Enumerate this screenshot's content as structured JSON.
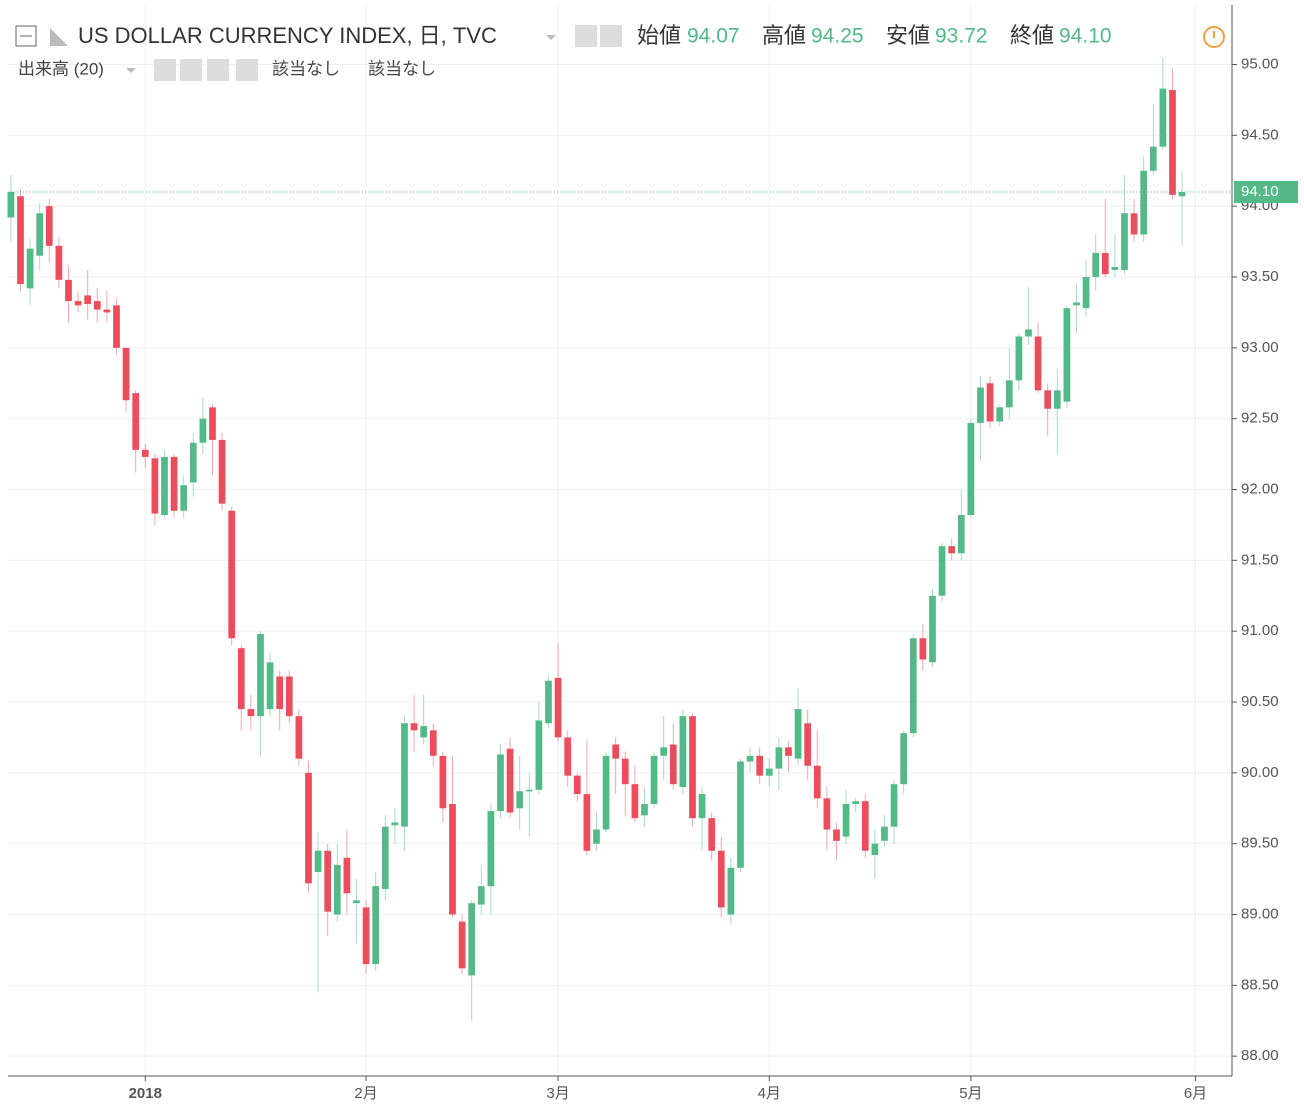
{
  "header": {
    "title": "US DOLLAR CURRENCY INDEX, 日, TVC",
    "readout": [
      {
        "name": "始値",
        "value": "94.07"
      },
      {
        "name": "高値",
        "value": "94.25"
      },
      {
        "name": "安値",
        "value": "93.72"
      },
      {
        "name": "終値",
        "value": "94.10"
      }
    ],
    "volume": "出来高 (20)",
    "na": [
      "該当なし",
      "該当なし"
    ]
  },
  "chart_data": {
    "type": "candlestick",
    "open": [
      93.92,
      94.07,
      93.42,
      93.65,
      94.0,
      93.72,
      93.48,
      93.33,
      93.37,
      93.33,
      93.27,
      93.3,
      93.0,
      92.68,
      92.28,
      92.22,
      91.82,
      92.23,
      91.85,
      92.05,
      92.33,
      92.58,
      92.35,
      91.85,
      90.88,
      90.45,
      90.4,
      90.45,
      90.68,
      90.68,
      90.4,
      90.0,
      89.3,
      89.45,
      89.0,
      89.4,
      89.08,
      89.05,
      88.65,
      89.18,
      89.63,
      89.62,
      90.35,
      90.25,
      90.3,
      90.12,
      89.78,
      88.95,
      88.57,
      89.07,
      89.2,
      89.73,
      90.17,
      89.75,
      89.88,
      89.88,
      90.35,
      90.67,
      90.25,
      89.98,
      89.85,
      89.5,
      89.6,
      90.2,
      90.1,
      89.92,
      89.7,
      89.78,
      90.12,
      90.2,
      89.9,
      90.4,
      89.68,
      89.68,
      89.45,
      89.0,
      89.33,
      90.08,
      90.12,
      89.98,
      90.03,
      90.18,
      90.1,
      90.35,
      90.05,
      89.82,
      89.6,
      89.55,
      89.78,
      89.8,
      89.42,
      89.52,
      89.62,
      89.92,
      90.28,
      90.95,
      90.78,
      91.25,
      91.6,
      91.55,
      91.82,
      92.47,
      92.75,
      92.48,
      92.58,
      92.77,
      93.08,
      93.08,
      92.7,
      92.57,
      92.62,
      93.3,
      93.28,
      93.5,
      93.67,
      93.55,
      93.55,
      93.95,
      93.8,
      94.25,
      94.42,
      94.82,
      94.07
    ],
    "high": [
      94.22,
      94.12,
      93.78,
      94.02,
      94.05,
      93.78,
      93.58,
      93.4,
      93.55,
      93.42,
      93.4,
      93.35,
      93.0,
      92.7,
      92.32,
      92.25,
      92.28,
      92.25,
      92.1,
      92.4,
      92.65,
      92.6,
      92.4,
      91.88,
      90.9,
      90.55,
      91.0,
      90.85,
      90.72,
      90.72,
      90.45,
      90.08,
      89.58,
      89.5,
      89.5,
      89.6,
      89.25,
      89.1,
      89.3,
      89.7,
      89.75,
      90.4,
      90.55,
      90.55,
      90.35,
      90.15,
      90.12,
      89.0,
      89.1,
      89.35,
      89.78,
      90.2,
      90.25,
      90.12,
      90.0,
      90.5,
      90.68,
      90.92,
      90.3,
      90.0,
      90.23,
      89.73,
      90.15,
      90.25,
      90.15,
      90.05,
      89.9,
      90.15,
      90.4,
      90.35,
      90.45,
      90.42,
      89.9,
      89.72,
      89.55,
      89.4,
      90.1,
      90.18,
      90.18,
      90.1,
      90.25,
      90.22,
      90.6,
      90.45,
      90.3,
      89.9,
      89.65,
      89.88,
      89.82,
      89.85,
      89.6,
      89.7,
      89.95,
      90.3,
      90.98,
      91.05,
      91.3,
      91.62,
      91.65,
      92.0,
      92.5,
      92.8,
      92.8,
      92.6,
      93.0,
      93.1,
      93.43,
      93.18,
      92.75,
      92.85,
      93.3,
      93.45,
      93.62,
      93.8,
      94.05,
      93.8,
      94.22,
      94.05,
      94.35,
      94.72,
      95.05,
      94.97,
      94.25
    ],
    "low": [
      93.75,
      93.4,
      93.3,
      93.55,
      93.6,
      93.42,
      93.18,
      93.25,
      93.2,
      93.18,
      93.18,
      92.95,
      92.55,
      92.12,
      92.15,
      91.75,
      91.8,
      91.8,
      91.8,
      91.95,
      92.25,
      92.1,
      91.85,
      90.9,
      90.3,
      90.3,
      90.12,
      90.4,
      90.3,
      90.35,
      90.05,
      89.15,
      88.45,
      88.85,
      88.95,
      89.0,
      88.8,
      88.58,
      88.6,
      89.1,
      89.5,
      89.45,
      90.15,
      90.2,
      90.05,
      89.65,
      88.98,
      88.58,
      88.25,
      89.0,
      89.0,
      89.68,
      89.68,
      89.6,
      89.55,
      89.85,
      90.32,
      90.22,
      89.9,
      89.8,
      89.42,
      89.45,
      89.58,
      89.85,
      89.7,
      89.65,
      89.62,
      89.75,
      89.95,
      89.88,
      89.85,
      89.62,
      89.45,
      89.38,
      88.98,
      88.93,
      89.3,
      90.0,
      89.92,
      89.9,
      89.88,
      90.0,
      90.05,
      89.95,
      89.75,
      89.45,
      89.38,
      89.5,
      89.72,
      89.4,
      89.25,
      89.48,
      89.5,
      89.85,
      90.25,
      90.72,
      90.75,
      91.2,
      91.5,
      91.5,
      91.8,
      92.2,
      92.43,
      92.45,
      92.5,
      92.7,
      93.02,
      92.68,
      92.38,
      92.25,
      92.58,
      93.1,
      93.22,
      93.4,
      93.5,
      93.5,
      93.52,
      93.75,
      93.75,
      94.22,
      94.4,
      94.05,
      93.72
    ],
    "close": [
      94.1,
      93.45,
      93.7,
      93.95,
      93.72,
      93.48,
      93.33,
      93.3,
      93.31,
      93.27,
      93.25,
      93.0,
      92.63,
      92.28,
      92.23,
      91.83,
      92.23,
      91.85,
      92.03,
      92.33,
      92.5,
      92.35,
      91.9,
      90.95,
      90.45,
      90.4,
      90.98,
      90.78,
      90.45,
      90.4,
      90.1,
      89.22,
      89.45,
      89.02,
      89.35,
      89.15,
      89.1,
      88.65,
      89.2,
      89.62,
      89.65,
      90.35,
      90.3,
      90.33,
      90.12,
      89.75,
      89.0,
      88.62,
      89.08,
      89.2,
      89.73,
      90.13,
      89.72,
      89.87,
      89.88,
      90.37,
      90.65,
      90.25,
      89.98,
      89.85,
      89.45,
      89.6,
      90.12,
      90.1,
      89.92,
      89.68,
      89.78,
      90.12,
      90.18,
      89.92,
      90.4,
      89.68,
      89.85,
      89.45,
      89.05,
      89.33,
      90.08,
      90.12,
      89.98,
      90.03,
      90.18,
      90.12,
      90.45,
      90.05,
      89.82,
      89.6,
      89.52,
      89.78,
      89.8,
      89.45,
      89.5,
      89.62,
      89.92,
      90.28,
      90.95,
      90.8,
      91.25,
      91.6,
      91.55,
      91.82,
      92.47,
      92.72,
      92.48,
      92.58,
      92.77,
      93.08,
      93.13,
      92.7,
      92.57,
      92.7,
      93.28,
      93.32,
      93.5,
      93.67,
      93.52,
      93.57,
      93.95,
      93.8,
      94.25,
      94.42,
      94.83,
      94.08,
      94.1
    ],
    "up_color": "#53b987",
    "down_color": "#eb4d5c",
    "ylim": [
      87.86,
      95.42
    ],
    "yticks": [
      {
        "value": 88,
        "label": "88.00"
      },
      {
        "value": 88.5,
        "label": "88.50"
      },
      {
        "value": 89,
        "label": "89.00"
      },
      {
        "value": 89.5,
        "label": "89.50"
      },
      {
        "value": 90,
        "label": "90.00"
      },
      {
        "value": 90.5,
        "label": "90.50"
      },
      {
        "value": 91,
        "label": "91.00"
      },
      {
        "value": 91.5,
        "label": "91.50"
      },
      {
        "value": 92,
        "label": "92.00"
      },
      {
        "value": 92.5,
        "label": "92.50"
      },
      {
        "value": 93,
        "label": "93.00"
      },
      {
        "value": 93.5,
        "label": "93.50"
      },
      {
        "value": 94,
        "label": "94.00"
      },
      {
        "value": 94.5,
        "label": "94.50"
      },
      {
        "value": 95,
        "label": "95.00"
      }
    ],
    "xlim": [
      -0.3,
      127.2
    ],
    "xticks": [
      {
        "value": 14,
        "label": "2018"
      },
      {
        "value": 37,
        "label": "2月"
      },
      {
        "value": 57,
        "label": "3月"
      },
      {
        "value": 79,
        "label": "4月"
      },
      {
        "value": 100,
        "label": "5月"
      },
      {
        "value": 123.4,
        "label": "6月"
      }
    ],
    "last_price": {
      "value": 94.1,
      "label": "94.10"
    },
    "grid": true
  }
}
